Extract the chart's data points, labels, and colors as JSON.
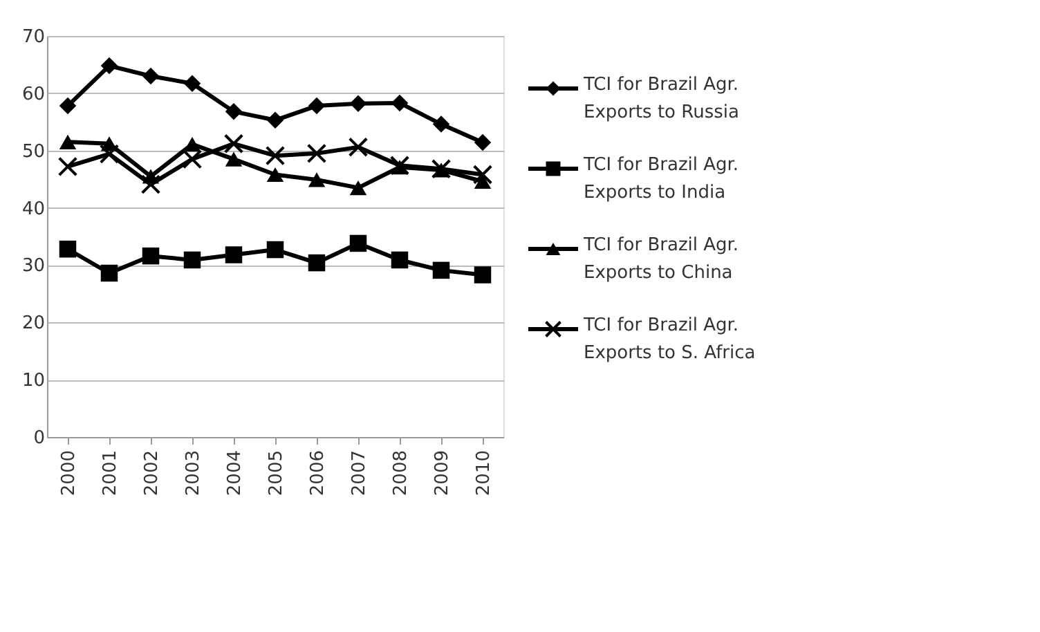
{
  "chart_data": {
    "type": "line",
    "categories": [
      "2000",
      "2001",
      "2002",
      "2003",
      "2004",
      "2005",
      "2006",
      "2007",
      "2008",
      "2009",
      "2010"
    ],
    "series": [
      {
        "name": "TCI for Brazil Agr. Exports to Russia",
        "color": "#000000",
        "marker": "diamond",
        "values": [
          57.8,
          64.8,
          63.0,
          61.7,
          56.8,
          55.3,
          57.8,
          58.2,
          58.3,
          54.6,
          51.4
        ]
      },
      {
        "name": "TCI for Brazil Agr. Exports to India",
        "color": "#000000",
        "marker": "square",
        "values": [
          32.8,
          28.6,
          31.6,
          30.9,
          31.8,
          32.7,
          30.4,
          33.8,
          30.9,
          29.1,
          28.3
        ]
      },
      {
        "name": "TCI for Brazil Agr. Exports to China",
        "color": "#000000",
        "marker": "triangle",
        "values": [
          51.5,
          51.2,
          45.5,
          51.1,
          48.5,
          45.8,
          44.9,
          43.5,
          47.1,
          46.6,
          44.6
        ]
      },
      {
        "name": "TCI for Brazil Agr. Exports to S. Africa",
        "color": "#000000",
        "marker": "cross",
        "values": [
          47.2,
          49.4,
          44.1,
          48.5,
          51.2,
          49.1,
          49.5,
          50.6,
          47.4,
          46.8,
          45.8
        ]
      }
    ],
    "ylim": [
      0,
      70
    ],
    "yticks": [
      0,
      10,
      20,
      30,
      40,
      50,
      60,
      70
    ],
    "grid": "y",
    "legend": "right",
    "line_style": "solid"
  }
}
